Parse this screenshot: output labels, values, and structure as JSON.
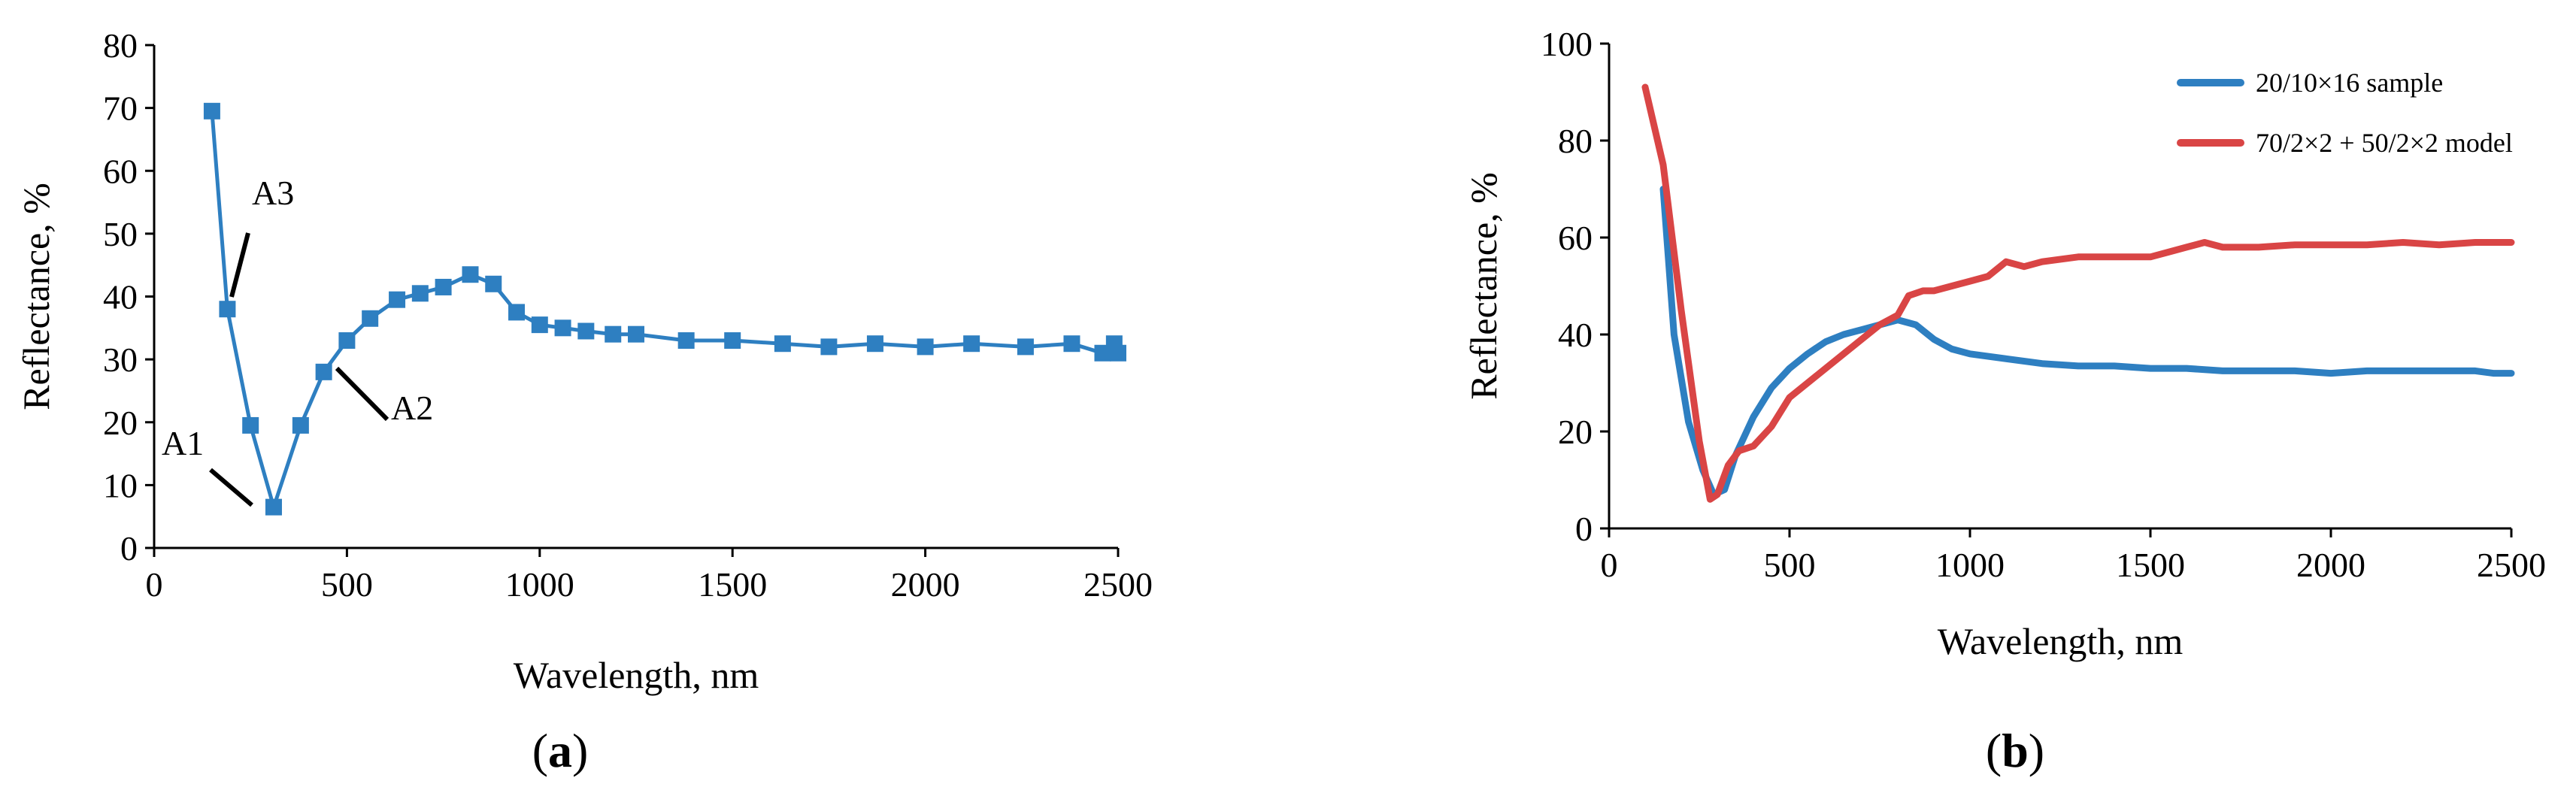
{
  "chart_data": [
    {
      "panel": "(a)",
      "panel_letter": "a",
      "type": "line",
      "xlabel": "Wavelength, nm",
      "ylabel": "Reflectance, %",
      "xlim": [
        0,
        2500
      ],
      "ylim": [
        0,
        80
      ],
      "xticks": [
        0,
        500,
        1000,
        1500,
        2000,
        2500
      ],
      "yticks": [
        0,
        10,
        20,
        30,
        40,
        50,
        60,
        70,
        80
      ],
      "grid": false,
      "markers": "square",
      "series": [
        {
          "color": "#2e7fc1",
          "x": [
            150,
            190,
            250,
            310,
            380,
            440,
            500,
            560,
            630,
            690,
            750,
            820,
            880,
            940,
            1000,
            1060,
            1120,
            1190,
            1250,
            1380,
            1500,
            1630,
            1750,
            1870,
            2000,
            2120,
            2260,
            2380,
            2460,
            2490,
            2500
          ],
          "y": [
            69.5,
            38,
            19.5,
            6.5,
            19.5,
            28,
            33,
            36.5,
            39.5,
            40.5,
            41.5,
            43.5,
            42,
            37.5,
            35.5,
            35,
            34.5,
            34,
            34,
            33,
            33,
            32.5,
            32,
            32.5,
            32,
            32.5,
            32,
            32.5,
            31,
            32.5,
            31
          ]
        }
      ],
      "annotations": [
        {
          "text": "A1",
          "x": 270,
          "y": 7
        },
        {
          "text": "A2",
          "x": 480,
          "y": 31
        },
        {
          "text": "A3",
          "x": 190,
          "y": 38
        }
      ]
    },
    {
      "panel": "(b)",
      "panel_letter": "b",
      "type": "line",
      "xlabel": "Wavelength, nm",
      "ylabel": "Reflectance, %",
      "xlim": [
        0,
        2500
      ],
      "ylim": [
        0,
        100
      ],
      "xticks": [
        0,
        500,
        1000,
        1500,
        2000,
        2500
      ],
      "yticks": [
        0,
        20,
        40,
        60,
        80,
        100
      ],
      "grid": false,
      "legend": "top-right",
      "series": [
        {
          "name": "20/10×16 sample",
          "color": "#2e7fc1",
          "x": [
            150,
            180,
            220,
            260,
            290,
            320,
            350,
            400,
            450,
            500,
            550,
            600,
            650,
            700,
            750,
            800,
            850,
            900,
            950,
            1000,
            1100,
            1200,
            1300,
            1400,
            1500,
            1600,
            1700,
            1800,
            1900,
            2000,
            2100,
            2200,
            2300,
            2400,
            2450,
            2480,
            2500
          ],
          "y": [
            70,
            40,
            22,
            12,
            7,
            8,
            15,
            23,
            29,
            33,
            36,
            38.5,
            40,
            41,
            42,
            43,
            42,
            39,
            37,
            36,
            35,
            34,
            33.5,
            33.5,
            33,
            33,
            32.5,
            32.5,
            32.5,
            32,
            32.5,
            32.5,
            32.5,
            32.5,
            32,
            32,
            32
          ]
        },
        {
          "name": "70/2×2 + 50/2×2 model",
          "color": "#d94545",
          "x": [
            100,
            150,
            200,
            250,
            280,
            300,
            330,
            360,
            400,
            450,
            500,
            550,
            600,
            650,
            700,
            750,
            800,
            830,
            870,
            900,
            950,
            1000,
            1050,
            1100,
            1150,
            1200,
            1300,
            1400,
            1500,
            1550,
            1600,
            1650,
            1700,
            1800,
            1900,
            2000,
            2100,
            2200,
            2300,
            2400,
            2500
          ],
          "y": [
            91,
            75,
            45,
            18,
            6,
            7,
            13,
            16,
            17,
            21,
            27,
            30,
            33,
            36,
            39,
            42,
            44,
            48,
            49,
            49,
            50,
            51,
            52,
            55,
            54,
            55,
            56,
            56,
            56,
            57,
            58,
            59,
            58,
            58,
            58.5,
            58.5,
            58.5,
            59,
            58.5,
            59,
            59
          ]
        }
      ]
    }
  ]
}
